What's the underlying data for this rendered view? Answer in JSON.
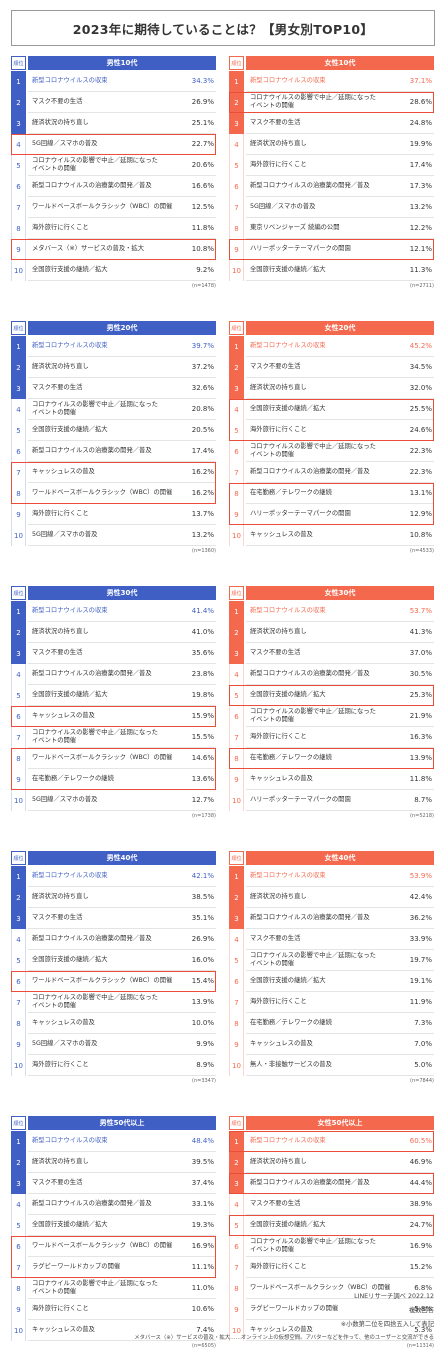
{
  "title": "2023年に期待していることは？【男女別TOP10】",
  "rank_header": "順位",
  "chart_data": {
    "type": "table",
    "title": "2023年に期待していることは？【男女別TOP10】",
    "panels": [
      {
        "group": "男性10代",
        "gender": "m",
        "n": "(n=1478)",
        "items": [
          {
            "rank": "1",
            "label": "新型コロナウイルスの収束",
            "value": "34.3%"
          },
          {
            "rank": "2",
            "label": "マスク不要の生活",
            "value": "26.9%"
          },
          {
            "rank": "3",
            "label": "経済状況の持ち直し",
            "value": "25.1%"
          },
          {
            "rank": "4",
            "label": "5G回線／スマホの普及",
            "value": "22.7%",
            "hl": true
          },
          {
            "rank": "5",
            "label": "コロナウイルスの影響で中止／延期になった\nイベントの開催",
            "value": "20.6%"
          },
          {
            "rank": "6",
            "label": "新型コロナウイルスの治療薬の開発／普及",
            "value": "16.6%"
          },
          {
            "rank": "7",
            "label": "ワールドベースボールクラシック（WBC）の開催",
            "value": "12.5%"
          },
          {
            "rank": "8",
            "label": "海外旅行に行くこと",
            "value": "11.8%"
          },
          {
            "rank": "9",
            "label": "メタバース（※）サービスの普及・拡大",
            "value": "10.8%",
            "hl": true
          },
          {
            "rank": "10",
            "label": "全国旅行支援の継続／拡大",
            "value": "9.2%"
          }
        ]
      },
      {
        "group": "女性10代",
        "gender": "f",
        "n": "(n=2711)",
        "items": [
          {
            "rank": "1",
            "label": "新型コロナウイルスの収束",
            "value": "37.1%"
          },
          {
            "rank": "2",
            "label": "コロナウイルスの影響で中止／延期になった\nイベントの開催",
            "value": "28.6%",
            "hl": true
          },
          {
            "rank": "3",
            "label": "マスク不要の生活",
            "value": "24.8%"
          },
          {
            "rank": "4",
            "label": "経済状況の持ち直し",
            "value": "19.9%"
          },
          {
            "rank": "5",
            "label": "海外旅行に行くこと",
            "value": "17.4%"
          },
          {
            "rank": "6",
            "label": "新型コロナウイルスの治療薬の開発／普及",
            "value": "17.3%"
          },
          {
            "rank": "7",
            "label": "5G回線／スマホの普及",
            "value": "13.2%"
          },
          {
            "rank": "8",
            "label": "東京リベンジャーズ 続編の公開",
            "value": "12.2%"
          },
          {
            "rank": "9",
            "label": "ハリーポッターテーマパークの開園",
            "value": "12.1%",
            "hl": true
          },
          {
            "rank": "10",
            "label": "全国旅行支援の継続／拡大",
            "value": "11.3%"
          }
        ]
      },
      {
        "group": "男性20代",
        "gender": "m",
        "n": "(n=1360)",
        "items": [
          {
            "rank": "1",
            "label": "新型コロナウイルスの収束",
            "value": "39.7%"
          },
          {
            "rank": "2",
            "label": "経済状況の持ち直し",
            "value": "37.2%"
          },
          {
            "rank": "3",
            "label": "マスク不要の生活",
            "value": "32.6%"
          },
          {
            "rank": "4",
            "label": "コロナウイルスの影響で中止／延期になった\nイベントの開催",
            "value": "20.8%"
          },
          {
            "rank": "5",
            "label": "全国旅行支援の継続／拡大",
            "value": "20.5%"
          },
          {
            "rank": "6",
            "label": "新型コロナウイルスの治療薬の開発／普及",
            "value": "17.4%"
          },
          {
            "rank": "7",
            "label": "キャッシュレスの普及",
            "value": "16.2%",
            "hl": true
          },
          {
            "rank": "8",
            "label": "ワールドベースボールクラシック（WBC）の開催",
            "value": "16.2%",
            "hl": true
          },
          {
            "rank": "9",
            "label": "海外旅行に行くこと",
            "value": "13.7%"
          },
          {
            "rank": "10",
            "label": "5G回線／スマホの普及",
            "value": "13.2%"
          }
        ]
      },
      {
        "group": "女性20代",
        "gender": "f",
        "n": "(n=4533)",
        "items": [
          {
            "rank": "1",
            "label": "新型コロナウイルスの収束",
            "value": "45.2%"
          },
          {
            "rank": "2",
            "label": "マスク不要の生活",
            "value": "34.5%"
          },
          {
            "rank": "3",
            "label": "経済状況の持ち直し",
            "value": "32.0%"
          },
          {
            "rank": "4",
            "label": "全国旅行支援の継続／拡大",
            "value": "25.5%",
            "hl": true
          },
          {
            "rank": "5",
            "label": "海外旅行に行くこと",
            "value": "24.6%",
            "hl": true
          },
          {
            "rank": "6",
            "label": "コロナウイルスの影響で中止／延期になった\nイベントの開催",
            "value": "22.3%"
          },
          {
            "rank": "7",
            "label": "新型コロナウイルスの治療薬の開発／普及",
            "value": "22.3%"
          },
          {
            "rank": "8",
            "label": "在宅勤務／テレワークの継続",
            "value": "13.1%",
            "hl": true
          },
          {
            "rank": "9",
            "label": "ハリーポッターテーマパークの開園",
            "value": "12.9%",
            "hl": true
          },
          {
            "rank": "10",
            "label": "キャッシュレスの普及",
            "value": "10.8%"
          }
        ]
      },
      {
        "group": "男性30代",
        "gender": "m",
        "n": "(n=1738)",
        "items": [
          {
            "rank": "1",
            "label": "新型コロナウイルスの収束",
            "value": "41.4%"
          },
          {
            "rank": "2",
            "label": "経済状況の持ち直し",
            "value": "41.0%"
          },
          {
            "rank": "3",
            "label": "マスク不要の生活",
            "value": "35.6%"
          },
          {
            "rank": "4",
            "label": "新型コロナウイルスの治療薬の開発／普及",
            "value": "23.8%"
          },
          {
            "rank": "5",
            "label": "全国旅行支援の継続／拡大",
            "value": "19.8%"
          },
          {
            "rank": "6",
            "label": "キャッシュレスの普及",
            "value": "15.9%",
            "hl": true
          },
          {
            "rank": "7",
            "label": "コロナウイルスの影響で中止／延期になった\nイベントの開催",
            "value": "15.5%"
          },
          {
            "rank": "8",
            "label": "ワールドベースボールクラシック（WBC）の開催",
            "value": "14.6%",
            "hl": true
          },
          {
            "rank": "9",
            "label": "在宅勤務／テレワークの継続",
            "value": "13.6%",
            "hl": true
          },
          {
            "rank": "10",
            "label": "5G回線／スマホの普及",
            "value": "12.7%"
          }
        ]
      },
      {
        "group": "女性30代",
        "gender": "f",
        "n": "(n=5218)",
        "items": [
          {
            "rank": "1",
            "label": "新型コロナウイルスの収束",
            "value": "53.7%"
          },
          {
            "rank": "2",
            "label": "経済状況の持ち直し",
            "value": "41.3%"
          },
          {
            "rank": "3",
            "label": "マスク不要の生活",
            "value": "37.0%"
          },
          {
            "rank": "4",
            "label": "新型コロナウイルスの治療薬の開発／普及",
            "value": "30.5%"
          },
          {
            "rank": "5",
            "label": "全国旅行支援の継続／拡大",
            "value": "25.3%",
            "hl": true
          },
          {
            "rank": "6",
            "label": "コロナウイルスの影響で中止／延期になった\nイベントの開催",
            "value": "21.9%"
          },
          {
            "rank": "7",
            "label": "海外旅行に行くこと",
            "value": "16.3%"
          },
          {
            "rank": "8",
            "label": "在宅勤務／テレワークの継続",
            "value": "13.9%",
            "hl": true
          },
          {
            "rank": "9",
            "label": "キャッシュレスの普及",
            "value": "11.8%"
          },
          {
            "rank": "10",
            "label": "ハリーポッターテーマパークの開園",
            "value": "8.7%"
          }
        ]
      },
      {
        "group": "男性40代",
        "gender": "m",
        "n": "(n=3347)",
        "items": [
          {
            "rank": "1",
            "label": "新型コロナウイルスの収束",
            "value": "42.1%"
          },
          {
            "rank": "2",
            "label": "経済状況の持ち直し",
            "value": "38.5%"
          },
          {
            "rank": "3",
            "label": "マスク不要の生活",
            "value": "35.1%"
          },
          {
            "rank": "4",
            "label": "新型コロナウイルスの治療薬の開発／普及",
            "value": "26.9%"
          },
          {
            "rank": "5",
            "label": "全国旅行支援の継続／拡大",
            "value": "16.0%"
          },
          {
            "rank": "6",
            "label": "ワールドベースボールクラシック（WBC）の開催",
            "value": "15.4%",
            "hl": true
          },
          {
            "rank": "7",
            "label": "コロナウイルスの影響で中止／延期になった\nイベントの開催",
            "value": "13.9%"
          },
          {
            "rank": "8",
            "label": "キャッシュレスの普及",
            "value": "10.0%"
          },
          {
            "rank": "9",
            "label": "5G回線／スマホの普及",
            "value": "9.9%"
          },
          {
            "rank": "10",
            "label": "海外旅行に行くこと",
            "value": "8.9%"
          }
        ]
      },
      {
        "group": "女性40代",
        "gender": "f",
        "n": "(n=7844)",
        "items": [
          {
            "rank": "1",
            "label": "新型コロナウイルスの収束",
            "value": "53.9%"
          },
          {
            "rank": "2",
            "label": "経済状況の持ち直し",
            "value": "42.4%"
          },
          {
            "rank": "3",
            "label": "新型コロナウイルスの治療薬の開発／普及",
            "value": "36.2%"
          },
          {
            "rank": "4",
            "label": "マスク不要の生活",
            "value": "33.9%"
          },
          {
            "rank": "5",
            "label": "コロナウイルスの影響で中止／延期になった\nイベントの開催",
            "value": "19.7%"
          },
          {
            "rank": "6",
            "label": "全国旅行支援の継続／拡大",
            "value": "19.1%"
          },
          {
            "rank": "7",
            "label": "海外旅行に行くこと",
            "value": "11.9%"
          },
          {
            "rank": "8",
            "label": "在宅勤務／テレワークの継続",
            "value": "7.3%"
          },
          {
            "rank": "9",
            "label": "キャッシュレスの普及",
            "value": "7.0%"
          },
          {
            "rank": "10",
            "label": "無人・非接触サービスの普及",
            "value": "5.0%"
          }
        ]
      },
      {
        "group": "男性50代以上",
        "gender": "m",
        "n": "(n=6505)",
        "items": [
          {
            "rank": "1",
            "label": "新型コロナウイルスの収束",
            "value": "48.4%"
          },
          {
            "rank": "2",
            "label": "経済状況の持ち直し",
            "value": "39.5%"
          },
          {
            "rank": "3",
            "label": "マスク不要の生活",
            "value": "37.4%"
          },
          {
            "rank": "4",
            "label": "新型コロナウイルスの治療薬の開発／普及",
            "value": "33.1%"
          },
          {
            "rank": "5",
            "label": "全国旅行支援の継続／拡大",
            "value": "19.3%"
          },
          {
            "rank": "6",
            "label": "ワールドベースボールクラシック（WBC）の開催",
            "value": "16.9%",
            "hl": true
          },
          {
            "rank": "7",
            "label": "ラグビーワールドカップの開催",
            "value": "11.1%",
            "hl": true
          },
          {
            "rank": "8",
            "label": "コロナウイルスの影響で中止／延期になった\nイベントの開催",
            "value": "11.0%"
          },
          {
            "rank": "9",
            "label": "海外旅行に行くこと",
            "value": "10.6%"
          },
          {
            "rank": "10",
            "label": "キャッシュレスの普及",
            "value": "7.4%"
          }
        ]
      },
      {
        "group": "女性50代以上",
        "gender": "f",
        "n": "(n=11314)",
        "items": [
          {
            "rank": "1",
            "label": "新型コロナウイルスの収束",
            "value": "60.5%",
            "hl": true
          },
          {
            "rank": "2",
            "label": "経済状況の持ち直し",
            "value": "46.9%"
          },
          {
            "rank": "3",
            "label": "新型コロナウイルスの治療薬の開発／普及",
            "value": "44.4%",
            "hl": true
          },
          {
            "rank": "4",
            "label": "マスク不要の生活",
            "value": "38.9%"
          },
          {
            "rank": "5",
            "label": "全国旅行支援の継続／拡大",
            "value": "24.7%",
            "hl": true
          },
          {
            "rank": "6",
            "label": "コロナウイルスの影響で中止／延期になった\nイベントの開催",
            "value": "16.9%"
          },
          {
            "rank": "7",
            "label": "海外旅行に行くこと",
            "value": "15.2%"
          },
          {
            "rank": "8",
            "label": "ワールドベースボールクラシック（WBC）の開催",
            "value": "6.8%"
          },
          {
            "rank": "9",
            "label": "ラグビーワールドカップの開催",
            "value": "5.8%"
          },
          {
            "rank": "10",
            "label": "キャッシュレスの普及",
            "value": "5.3%"
          }
        ]
      }
    ]
  },
  "footer": {
    "source": "LINEリサーチ調べ 2022.12",
    "multi": "複数回答",
    "rounding": "※小数第二位を四捨五入して表記",
    "metaverse_note": "メタバース（※）サービスの普及・拡大……オンライン上の仮想空間。アバターなどを作って、他のユーザーと交流ができる"
  },
  "colors": {
    "male": "#3f5fc5",
    "female": "#f4694e",
    "highlight": "#ea4e3a"
  }
}
